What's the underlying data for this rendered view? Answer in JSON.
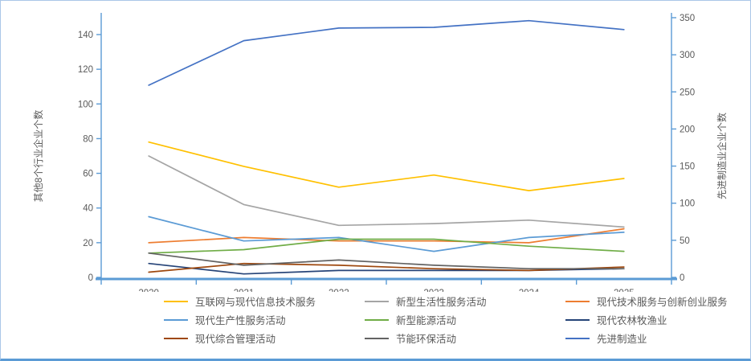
{
  "chart_data": {
    "type": "line",
    "title": "",
    "categories": [
      "2020",
      "2021",
      "2022",
      "2023",
      "2024",
      "2025"
    ],
    "left_axis": {
      "title": "其他8个行业企业个数",
      "min": 0,
      "max": 140,
      "step": 20,
      "tick_labels": [
        "0",
        "20",
        "40",
        "60",
        "80",
        "100",
        "120",
        "140"
      ]
    },
    "right_axis": {
      "title": "先进制造业企业个数",
      "min": 0,
      "max": 350,
      "step": 50,
      "tick_labels": [
        "0",
        "50",
        "100",
        "150",
        "200",
        "250",
        "300",
        "350"
      ]
    },
    "grid": false,
    "legend_position": "bottom",
    "axis_color": "#5B9BD5",
    "tick_text_color": "#595959",
    "series": [
      {
        "name": "互联网与现代信息技术服务",
        "color": "#FFC000",
        "axis": "left",
        "values": [
          78,
          64,
          52,
          59,
          50,
          57
        ]
      },
      {
        "name": "新型生活性服务活动",
        "color": "#A5A5A5",
        "axis": "left",
        "values": [
          70,
          42,
          30,
          31,
          33,
          29
        ]
      },
      {
        "name": "现代技术服务与创新创业服务",
        "color": "#ED7D31",
        "axis": "left",
        "values": [
          20,
          23,
          21,
          21,
          20,
          28
        ]
      },
      {
        "name": "现代生产性服务活动",
        "color": "#5B9BD5",
        "axis": "left",
        "values": [
          35,
          21,
          23,
          15,
          23,
          26
        ]
      },
      {
        "name": "新型能源活动",
        "color": "#70AD47",
        "axis": "left",
        "values": [
          14,
          16,
          22,
          22,
          18,
          15
        ]
      },
      {
        "name": "现代农林牧渔业",
        "color": "#264478",
        "axis": "left",
        "values": [
          8,
          2,
          4,
          4,
          4,
          5
        ]
      },
      {
        "name": "现代综合管理活动",
        "color": "#9E480E",
        "axis": "left",
        "values": [
          3,
          8,
          7,
          5,
          4,
          6
        ]
      },
      {
        "name": "节能环保活动",
        "color": "#636363",
        "axis": "left",
        "values": [
          14,
          7,
          10,
          7,
          5,
          5
        ]
      },
      {
        "name": "先进制造业",
        "color": "#4472C4",
        "axis": "right",
        "values": [
          259,
          319,
          336,
          337,
          346,
          334
        ]
      }
    ]
  }
}
